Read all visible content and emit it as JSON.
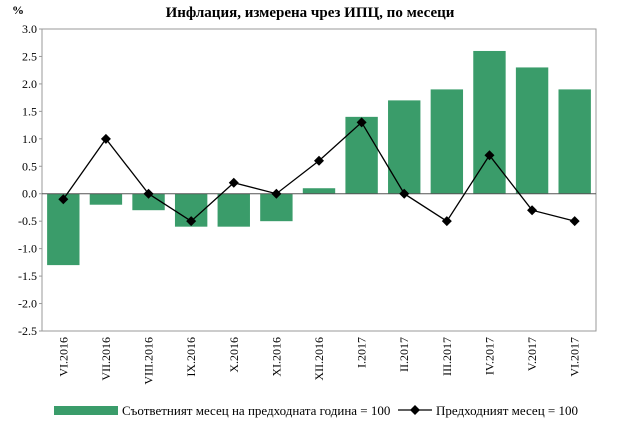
{
  "chart_data": {
    "type": "bar",
    "title": "Инфлация, измерена чрез ИПЦ, по месеци",
    "ylabel": "%",
    "ylim": [
      -2.5,
      3.0
    ],
    "yticks": [
      "3.0",
      "2.5",
      "2.0",
      "1.5",
      "1.0",
      "0.5",
      "0.0",
      "-0.5",
      "-1.0",
      "-1.5",
      "-2.0",
      "-2.5"
    ],
    "categories": [
      "VI.2016",
      "VII.2016",
      "VIII.2016",
      "IX.2016",
      "X.2016",
      "XI.2016",
      "XII.2016",
      "I.2017",
      "II.2017",
      "III.2017",
      "IV.2017",
      "V.2017",
      "VI.2017"
    ],
    "series": [
      {
        "name": "Съответният месец на предходната година = 100",
        "type": "bar",
        "color": "#3a9c6a",
        "values": [
          -1.3,
          -0.2,
          -0.3,
          -0.6,
          -0.6,
          -0.5,
          0.1,
          1.4,
          1.7,
          1.9,
          2.6,
          2.3,
          1.9
        ]
      },
      {
        "name": "Предходният месец = 100",
        "type": "line",
        "color": "#000000",
        "marker": "diamond",
        "values": [
          -0.1,
          1.0,
          0.0,
          -0.5,
          0.2,
          0.0,
          0.6,
          1.3,
          0.0,
          -0.5,
          0.7,
          -0.3,
          -0.5
        ]
      }
    ],
    "grid": false,
    "legend_position": "bottom"
  }
}
